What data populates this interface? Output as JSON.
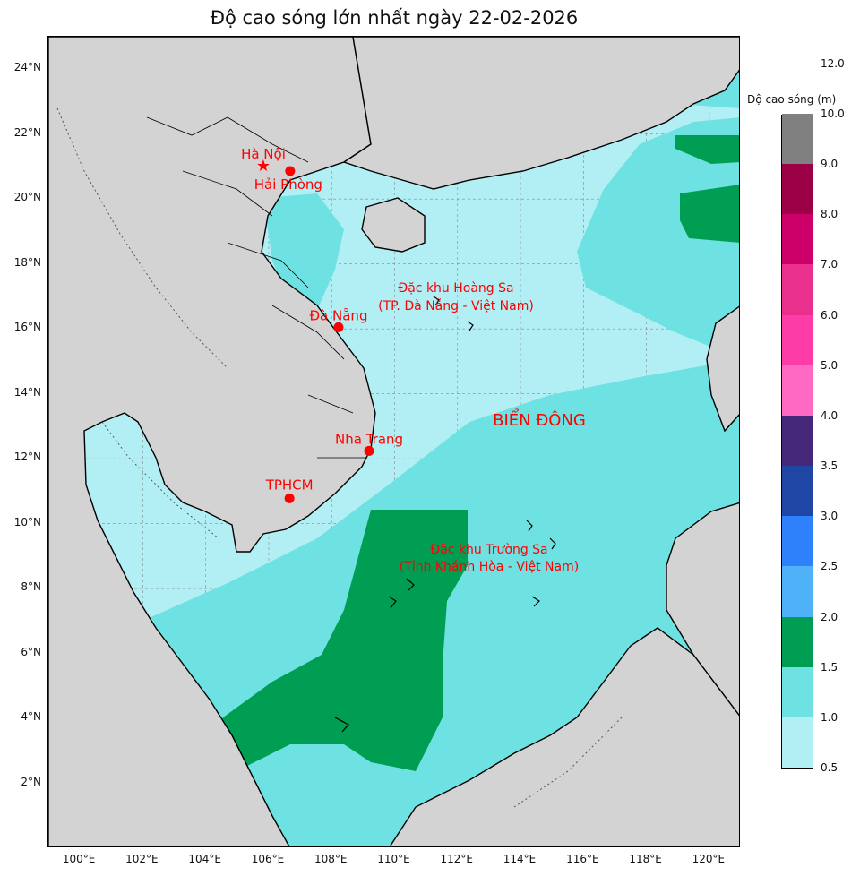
{
  "title": "Độ cao sóng lớn nhất ngày 22-02-2026",
  "map": {
    "lat_min": 0,
    "lat_max": 25,
    "lon_min": 99,
    "lon_max": 121,
    "lat_ticks": [
      "2°N",
      "4°N",
      "6°N",
      "8°N",
      "10°N",
      "12°N",
      "14°N",
      "16°N",
      "18°N",
      "20°N",
      "22°N",
      "24°N"
    ],
    "lon_ticks": [
      "100°E",
      "102°E",
      "104°E",
      "106°E",
      "108°E",
      "110°E",
      "112°E",
      "114°E",
      "116°E",
      "118°E",
      "120°E"
    ],
    "colors": {
      "land": "#d3d3d3",
      "sea_low": "#b2eff5",
      "sea_mid": "#6ee2e2",
      "sea_high": "#009e52",
      "marker": "#ff0000",
      "label": "#ff0000"
    }
  },
  "places": [
    {
      "name": "Hà Nội",
      "lon": 105.83,
      "lat": 21.03,
      "symbol": "star-icon"
    },
    {
      "name": "Hải Phòng",
      "lon": 106.68,
      "lat": 20.86,
      "symbol": "dot-icon"
    },
    {
      "name": "Đà Nẵng",
      "lon": 108.22,
      "lat": 16.05,
      "symbol": "dot-icon"
    },
    {
      "name": "Nha Trang",
      "lon": 109.19,
      "lat": 12.24,
      "symbol": "dot-icon"
    },
    {
      "name": "TPHCM",
      "lon": 106.66,
      "lat": 10.78,
      "symbol": "dot-icon"
    }
  ],
  "annotations": {
    "hoang_sa_line1": "Đặc khu Hoàng Sa",
    "hoang_sa_line2": "(TP. Đà Nẵng - Việt Nam)",
    "bien_dong": "BIỂN ĐÔNG",
    "truong_sa_line1": "Đặc khu Trường Sa",
    "truong_sa_line2": "(Tỉnh Khánh Hòa - Việt Nam)"
  },
  "colorbar": {
    "title": "Độ cao sóng (m)",
    "ticks": [
      "0.5",
      "1.0",
      "1.5",
      "2.0",
      "2.5",
      "3.0",
      "3.5",
      "4.0",
      "5.0",
      "6.0",
      "7.0",
      "8.0",
      "9.0",
      "10.0",
      "12.0"
    ],
    "colors": [
      "#b2eff5",
      "#6ee2e2",
      "#009e52",
      "#4fb2f8",
      "#2f81fb",
      "#1f46a4",
      "#46287a",
      "#fe69c4",
      "#fd3ca8",
      "#e8308c",
      "#cc0068",
      "#9c0047",
      "#808080"
    ]
  }
}
